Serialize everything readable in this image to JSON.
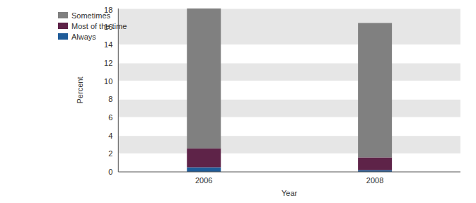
{
  "chart_data": {
    "type": "bar",
    "stacked": true,
    "x_label": "Year",
    "y_label": "Percent",
    "categories": [
      "2006",
      "2008"
    ],
    "series": [
      {
        "name": "Sometimes",
        "color": "#808080",
        "values": [
          15.4,
          14.8
        ]
      },
      {
        "name": "Most of the time",
        "color": "#5e2348",
        "values": [
          2.1,
          1.4
        ]
      },
      {
        "name": "Always",
        "color": "#1f5c99",
        "values": [
          0.5,
          0.2
        ]
      }
    ],
    "ylim": [
      0,
      18
    ],
    "yticks": [
      0,
      2,
      4,
      6,
      8,
      10,
      12,
      14,
      16,
      18
    ],
    "grid": true,
    "legend": "upper left"
  }
}
